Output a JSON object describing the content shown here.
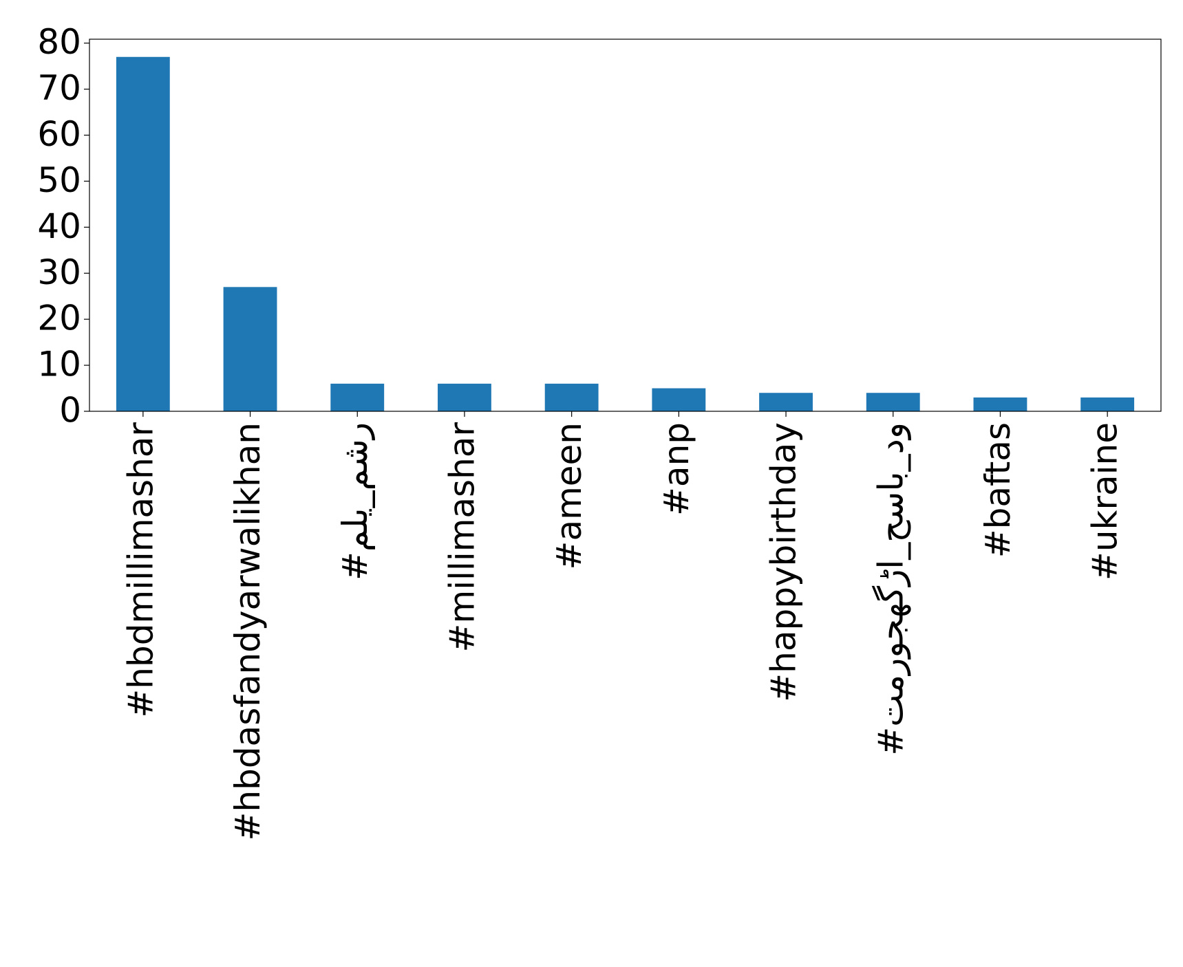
{
  "chart_data": {
    "type": "bar",
    "categories": [
      "#hbdmillimashar",
      "#hbdasfandyarwalikhan",
      "#ملي_مشر",
      "#millimashar",
      "#ameen",
      "#anp",
      "#happybirthday",
      "#تمروجھگڑا_حساب_دو",
      "#baftas",
      "#ukraine"
    ],
    "values": [
      77,
      27,
      6,
      6,
      6,
      5,
      4,
      4,
      3,
      3
    ],
    "color": "#1f77b4",
    "ylim": [
      0,
      80.85
    ],
    "yticks": [
      0,
      10,
      20,
      30,
      40,
      50,
      60,
      70,
      80
    ],
    "grid": false
  }
}
